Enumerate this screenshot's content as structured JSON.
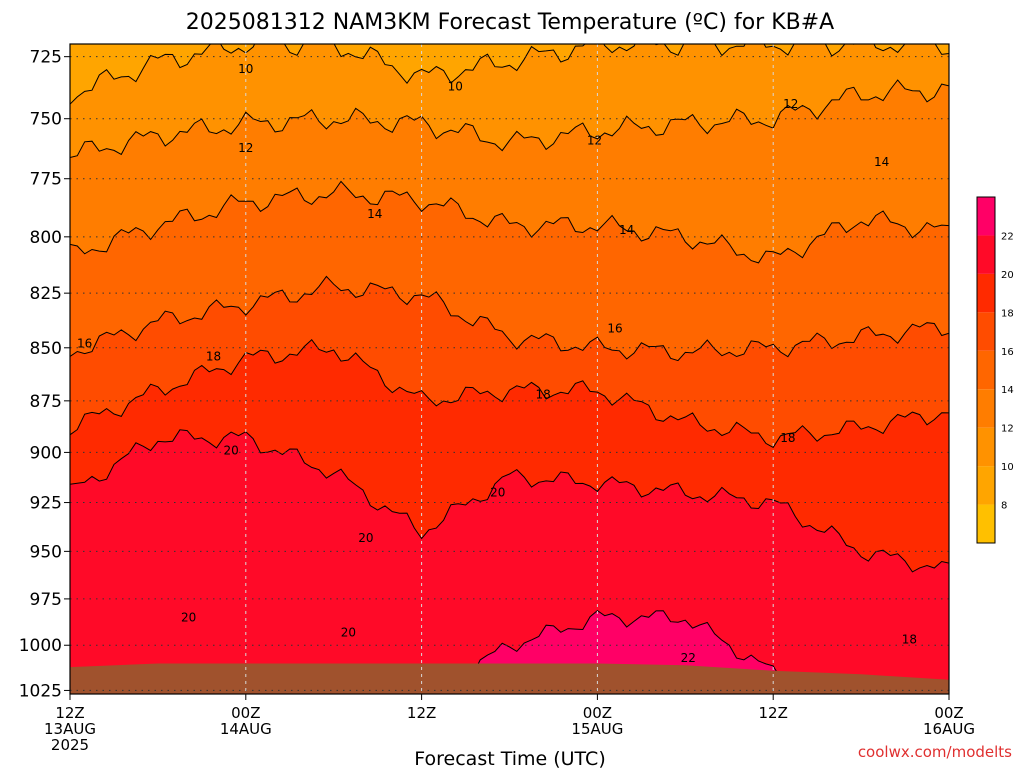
{
  "chart_data": {
    "type": "heatmap",
    "title": "2025081312 NAM3KM Forecast Temperature (ºC) for KB#A",
    "xlabel": "Forecast Time (UTC)",
    "ylabel": "",
    "y_scale": "log",
    "y_inverted": true,
    "y_ticks": [
      725,
      750,
      775,
      800,
      825,
      850,
      875,
      900,
      925,
      950,
      975,
      1000,
      1025
    ],
    "ylim": [
      720,
      1027
    ],
    "x_ticks": [
      {
        "hour": 0,
        "l1": "12Z",
        "l2": "13AUG",
        "l3": "2025"
      },
      {
        "hour": 12,
        "l1": "00Z",
        "l2": "14AUG",
        "l3": ""
      },
      {
        "hour": 24,
        "l1": "12Z",
        "l2": "",
        "l3": ""
      },
      {
        "hour": 36,
        "l1": "00Z",
        "l2": "15AUG",
        "l3": ""
      },
      {
        "hour": 48,
        "l1": "12Z",
        "l2": "",
        "l3": ""
      },
      {
        "hour": 60,
        "l1": "00Z",
        "l2": "16AUG",
        "l3": ""
      }
    ],
    "xlim": [
      0,
      60
    ],
    "grid": true,
    "colorbar": {
      "levels": [
        6,
        8,
        10,
        12,
        14,
        16,
        18,
        20,
        22,
        24
      ],
      "labels": [
        8,
        10,
        12,
        14,
        16,
        18,
        20,
        22
      ],
      "colors": [
        "#ffc000",
        "#ffa500",
        "#ff9200",
        "#ff7d00",
        "#ff6600",
        "#ff4c00",
        "#ff2a00",
        "#ff0a28",
        "#ff0066"
      ]
    },
    "contour_levels": [
      10,
      12,
      14,
      16,
      18,
      20,
      22
    ],
    "isotherms_hPa": {
      "hours": [
        0,
        6,
        12,
        18,
        24,
        30,
        36,
        42,
        48,
        54,
        60
      ],
      "t10": [
        740,
        727,
        720,
        720,
        733,
        727,
        720,
        720,
        720,
        720,
        720
      ],
      "t12": [
        765,
        757,
        752,
        750,
        752,
        760,
        755,
        752,
        750,
        740,
        738
      ],
      "t14": [
        808,
        795,
        785,
        781,
        784,
        795,
        795,
        800,
        810,
        792,
        798
      ],
      "t16": [
        852,
        838,
        830,
        822,
        826,
        845,
        850,
        852,
        850,
        845,
        840
      ],
      "t18": [
        888,
        870,
        855,
        850,
        875,
        870,
        870,
        885,
        893,
        888,
        880
      ],
      "t20": [
        920,
        893,
        893,
        910,
        940,
        912,
        915,
        920,
        925,
        950,
        960
      ],
      "t22": [
        1030,
        1030,
        1030,
        1030,
        1030,
        1000,
        985,
        985,
        1015,
        1030,
        1030
      ]
    },
    "surface_hPa": [
      1012,
      1010,
      1010,
      1010,
      1010,
      1010,
      1010,
      1011,
      1014,
      1016,
      1019
    ],
    "contour_labels": [
      {
        "v": "10",
        "h": 12.0,
        "p": 730
      },
      {
        "v": "10",
        "h": 26.3,
        "p": 737
      },
      {
        "v": "12",
        "h": 12.0,
        "p": 762
      },
      {
        "v": "12",
        "h": 35.8,
        "p": 759
      },
      {
        "v": "12",
        "h": 49.2,
        "p": 744
      },
      {
        "v": "14",
        "h": 20.8,
        "p": 790
      },
      {
        "v": "14",
        "h": 38.0,
        "p": 797
      },
      {
        "v": "14",
        "h": 55.4,
        "p": 768
      },
      {
        "v": "16",
        "h": 1.0,
        "p": 848
      },
      {
        "v": "16",
        "h": 37.2,
        "p": 841
      },
      {
        "v": "18",
        "h": 9.8,
        "p": 854
      },
      {
        "v": "18",
        "h": 32.3,
        "p": 872
      },
      {
        "v": "18",
        "h": 49.0,
        "p": 893
      },
      {
        "v": "20",
        "h": 11.0,
        "p": 899
      },
      {
        "v": "20",
        "h": 29.2,
        "p": 920
      },
      {
        "v": "20",
        "h": 20.2,
        "p": 943
      },
      {
        "v": "20",
        "h": 8.1,
        "p": 985
      },
      {
        "v": "20",
        "h": 19.0,
        "p": 993
      },
      {
        "v": "22",
        "h": 42.2,
        "p": 1007
      },
      {
        "v": "18",
        "h": 57.3,
        "p": 997
      }
    ]
  },
  "credit": "coolwx.com/modelts"
}
